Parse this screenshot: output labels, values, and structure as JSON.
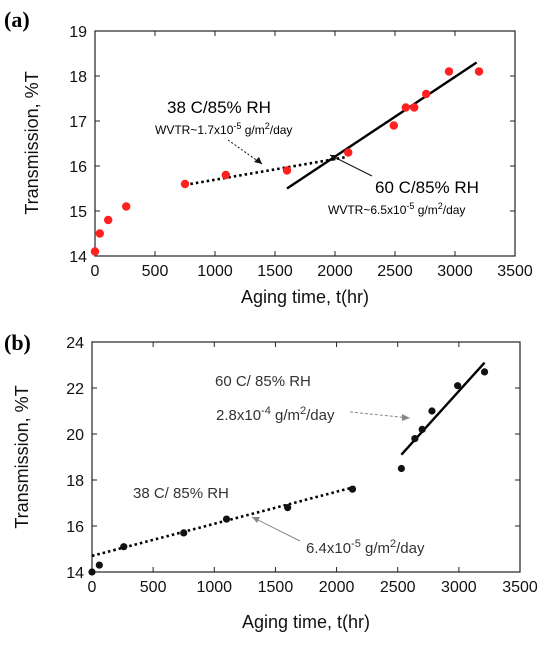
{
  "chart_data": [
    {
      "panel_label": "(a)",
      "type": "scatter",
      "xlabel": "Aging time, t(hr)",
      "ylabel": "Transmission, %T",
      "xlim": [
        0,
        3500
      ],
      "ylim": [
        14,
        19
      ],
      "xticks": [
        "0",
        "500",
        "1000",
        "1500",
        "2000",
        "2500",
        "3000",
        "3500"
      ],
      "yticks": [
        "14",
        "15",
        "16",
        "17",
        "18",
        "19"
      ],
      "grid": false,
      "marker_color": "#ff2020",
      "points": [
        {
          "x": 0,
          "y": 14.1
        },
        {
          "x": 40,
          "y": 14.5
        },
        {
          "x": 110,
          "y": 14.8
        },
        {
          "x": 260,
          "y": 15.1
        },
        {
          "x": 750,
          "y": 15.6
        },
        {
          "x": 1090,
          "y": 15.8
        },
        {
          "x": 1600,
          "y": 15.9
        },
        {
          "x": 2110,
          "y": 16.3
        },
        {
          "x": 2490,
          "y": 16.9
        },
        {
          "x": 2590,
          "y": 17.3
        },
        {
          "x": 2660,
          "y": 17.3
        },
        {
          "x": 2760,
          "y": 17.6
        },
        {
          "x": 2950,
          "y": 18.1
        },
        {
          "x": 3200,
          "y": 18.1
        }
      ],
      "fit_lines": [
        {
          "style": "dotted",
          "x": [
            750,
            2100
          ],
          "y": [
            15.58,
            16.2
          ]
        },
        {
          "style": "solid",
          "x": [
            1600,
            3180
          ],
          "y": [
            15.5,
            18.3
          ]
        }
      ],
      "annotations": [
        {
          "main": "38 C/85% RH",
          "sub_pre": "WVTR~1.7x10",
          "sup": "-5",
          "sub_mid": " g/m",
          "sup2": "2",
          "sub_post": "/day"
        },
        {
          "main": "60 C/85% RH",
          "sub_pre": "WVTR~6.5x10",
          "sup": "-5",
          "sub_mid": " g/m",
          "sup2": "2",
          "sub_post": "/day"
        }
      ]
    },
    {
      "panel_label": "(b)",
      "type": "scatter",
      "xlabel": "Aging time, t(hr)",
      "ylabel": "Transmission, %T",
      "xlim": [
        0,
        3500
      ],
      "ylim": [
        14,
        24
      ],
      "xticks": [
        "0",
        "500",
        "1000",
        "1500",
        "2000",
        "2500",
        "3000",
        "3500"
      ],
      "yticks": [
        "14",
        "16",
        "18",
        "20",
        "22",
        "24"
      ],
      "grid": false,
      "marker_color": "#111111",
      "points": [
        {
          "x": 0,
          "y": 14.0
        },
        {
          "x": 60,
          "y": 14.3
        },
        {
          "x": 260,
          "y": 15.1
        },
        {
          "x": 750,
          "y": 15.7
        },
        {
          "x": 1100,
          "y": 16.3
        },
        {
          "x": 1600,
          "y": 16.8
        },
        {
          "x": 2130,
          "y": 17.6
        },
        {
          "x": 2530,
          "y": 18.5
        },
        {
          "x": 2640,
          "y": 19.8
        },
        {
          "x": 2700,
          "y": 20.2
        },
        {
          "x": 2780,
          "y": 21.0
        },
        {
          "x": 2990,
          "y": 22.1
        },
        {
          "x": 3210,
          "y": 22.7
        }
      ],
      "fit_lines": [
        {
          "style": "dotted",
          "x": [
            0,
            2150
          ],
          "y": [
            14.7,
            17.7
          ]
        },
        {
          "style": "solid",
          "x": [
            2530,
            3210
          ],
          "y": [
            19.1,
            23.1
          ]
        }
      ],
      "annotations": [
        {
          "main": "60 C/ 85% RH",
          "sub_pre": "2.8x10",
          "sup": "-4",
          "sub_mid": " g/m",
          "sup2": "2",
          "sub_post": "/day"
        },
        {
          "main": "38 C/ 85% RH",
          "sub_pre": "6.4x10",
          "sup": "-5",
          "sub_mid": " g/m",
          "sup2": "2",
          "sub_post": "/day"
        }
      ]
    }
  ]
}
